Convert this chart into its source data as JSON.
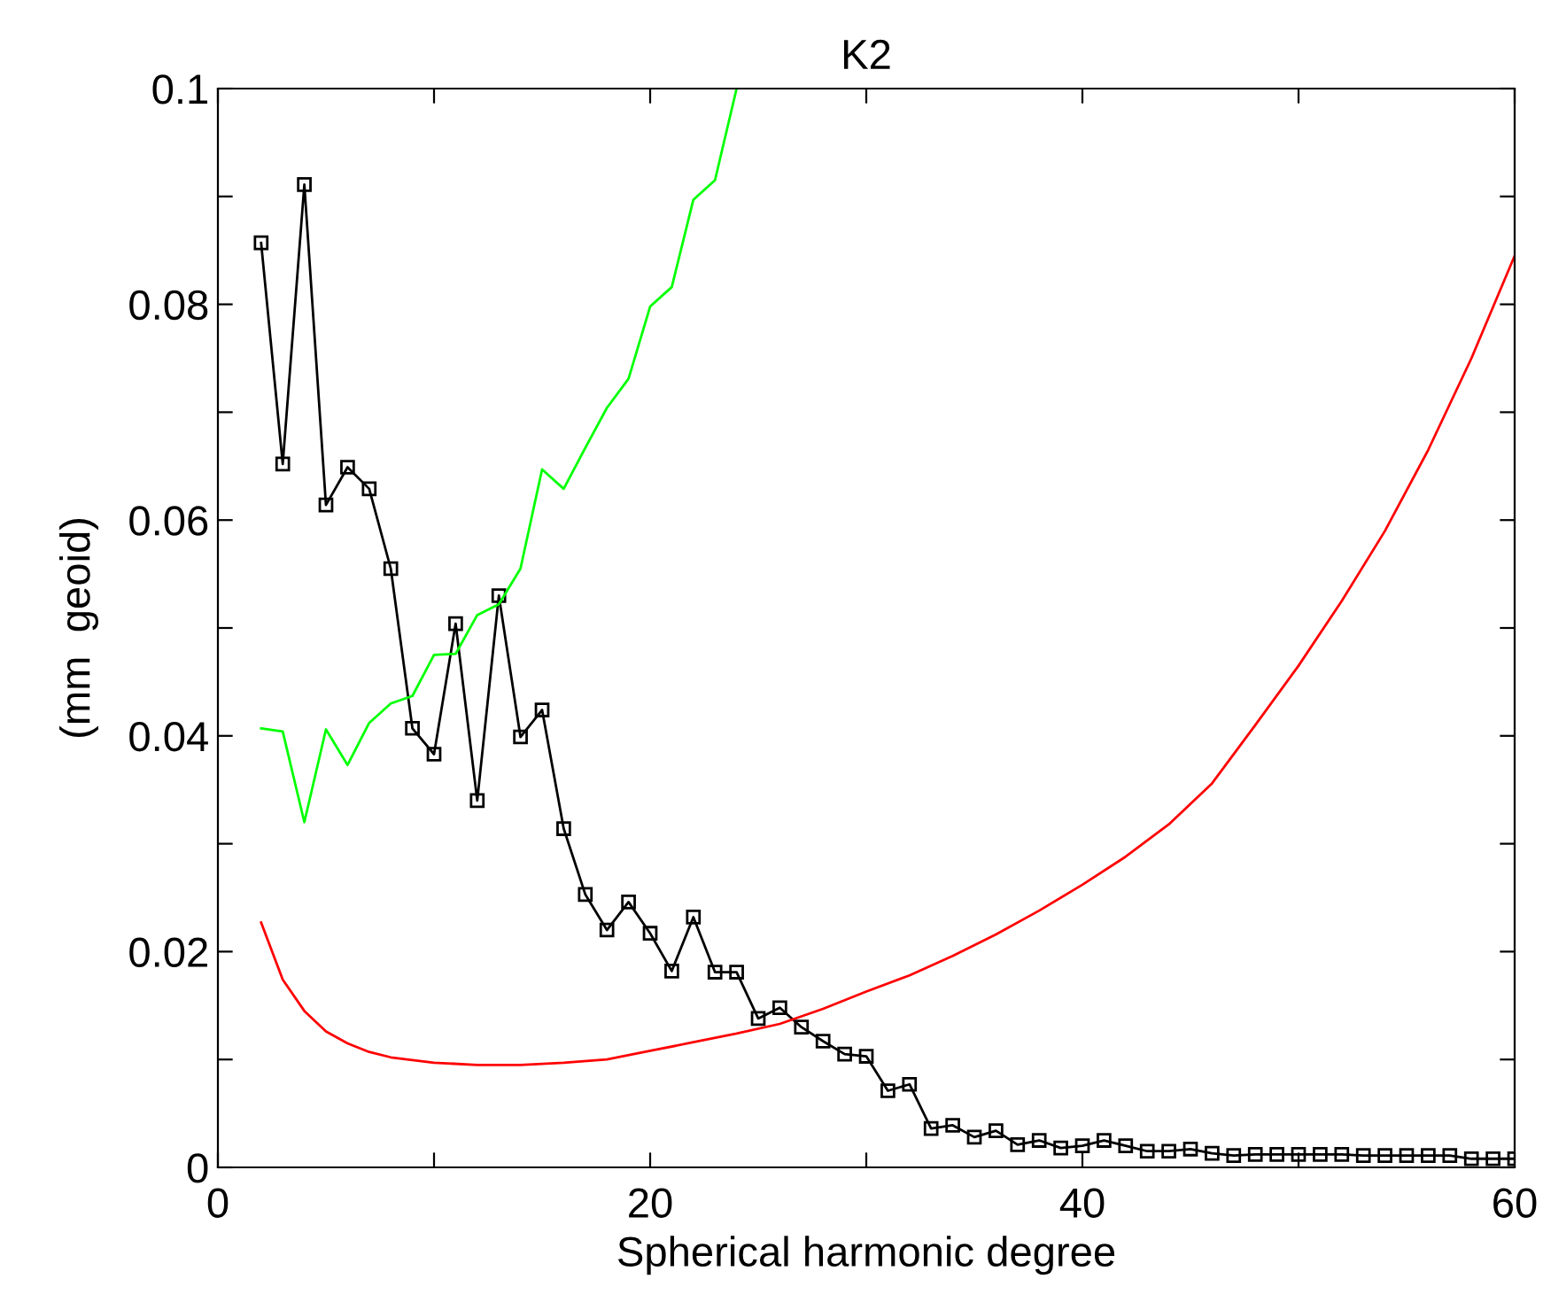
{
  "chart_data": {
    "type": "line",
    "title": "K2",
    "xlabel": "Spherical harmonic degree",
    "ylabel": "(mm  geoid)",
    "xlim": [
      0,
      60
    ],
    "ylim": [
      0,
      0.1
    ],
    "xticks": [
      0,
      {
        "value": 10,
        "label": null
      },
      20,
      {
        "value": 30,
        "label": null
      },
      40,
      {
        "value": 50,
        "label": null
      },
      60
    ],
    "yticks": [
      0,
      {
        "value": 0.01,
        "label": null
      },
      0.02,
      {
        "value": 0.03,
        "label": null
      },
      0.04,
      {
        "value": 0.05,
        "label": null
      },
      0.06,
      {
        "value": 0.07,
        "label": null
      },
      0.08,
      {
        "value": 0.09,
        "label": null
      },
      0.1
    ],
    "grid": false,
    "series": [
      {
        "color": "#000000",
        "marker": "square",
        "x": [
          2,
          3,
          4,
          5,
          6,
          7,
          8,
          9,
          10,
          11,
          12,
          13,
          14,
          15,
          16,
          17,
          18,
          19,
          20,
          21,
          22,
          23,
          24,
          25,
          26,
          27,
          28,
          29,
          30,
          31,
          32,
          33,
          34,
          35,
          36,
          37,
          38,
          39,
          40,
          41,
          42,
          43,
          44,
          45,
          46,
          47,
          48,
          49,
          50,
          51,
          52,
          53,
          54,
          55,
          56,
          57,
          58,
          59,
          60
        ],
        "values": [
          0.0857,
          0.0652,
          0.0911,
          0.0614,
          0.0649,
          0.0629,
          0.0555,
          0.0407,
          0.0383,
          0.0504,
          0.034,
          0.053,
          0.0399,
          0.0424,
          0.0314,
          0.0253,
          0.022,
          0.0246,
          0.0217,
          0.0182,
          0.0232,
          0.0181,
          0.0181,
          0.0138,
          0.0148,
          0.013,
          0.0117,
          0.0105,
          0.0103,
          0.0071,
          0.0077,
          0.0036,
          0.0039,
          0.0028,
          0.0034,
          0.0021,
          0.0025,
          0.0018,
          0.002,
          0.0025,
          0.002,
          0.0015,
          0.0015,
          0.0017,
          0.0013,
          0.0011,
          0.0012,
          0.0012,
          0.0012,
          0.0012,
          0.0012,
          0.0011,
          0.0011,
          0.0011,
          0.0011,
          0.0011,
          0.0008,
          0.0008,
          0.0008
        ]
      },
      {
        "color": "#00ff00",
        "marker": "none",
        "x": [
          2,
          3,
          4,
          5,
          6,
          7,
          8,
          9,
          10,
          11,
          12,
          13,
          14,
          15,
          16,
          17,
          18,
          19,
          20,
          21,
          22,
          23,
          24
        ],
        "values": [
          0.0407,
          0.0404,
          0.032,
          0.0406,
          0.0373,
          0.0412,
          0.043,
          0.0437,
          0.0475,
          0.0476,
          0.0512,
          0.0522,
          0.0555,
          0.0647,
          0.0629,
          0.0667,
          0.0704,
          0.0731,
          0.0798,
          0.0816,
          0.0897,
          0.0915,
          0.1
        ]
      },
      {
        "color": "#ff0000",
        "marker": "none",
        "x": [
          2,
          3,
          4,
          5,
          6,
          7,
          8,
          10,
          12,
          14,
          16,
          18,
          20,
          22,
          24,
          26,
          28,
          30,
          32,
          34,
          36,
          38,
          40,
          42,
          44,
          46,
          48,
          50,
          52,
          54,
          56,
          58,
          60
        ],
        "values": [
          0.0227,
          0.0174,
          0.0145,
          0.0126,
          0.0115,
          0.0107,
          0.0102,
          0.0097,
          0.0095,
          0.0095,
          0.0097,
          0.01,
          0.0108,
          0.0116,
          0.0124,
          0.0133,
          0.0147,
          0.0163,
          0.0178,
          0.0196,
          0.0216,
          0.0238,
          0.0262,
          0.0288,
          0.0318,
          0.0356,
          0.041,
          0.0465,
          0.0525,
          0.059,
          0.0665,
          0.075,
          0.0845
        ]
      }
    ]
  }
}
